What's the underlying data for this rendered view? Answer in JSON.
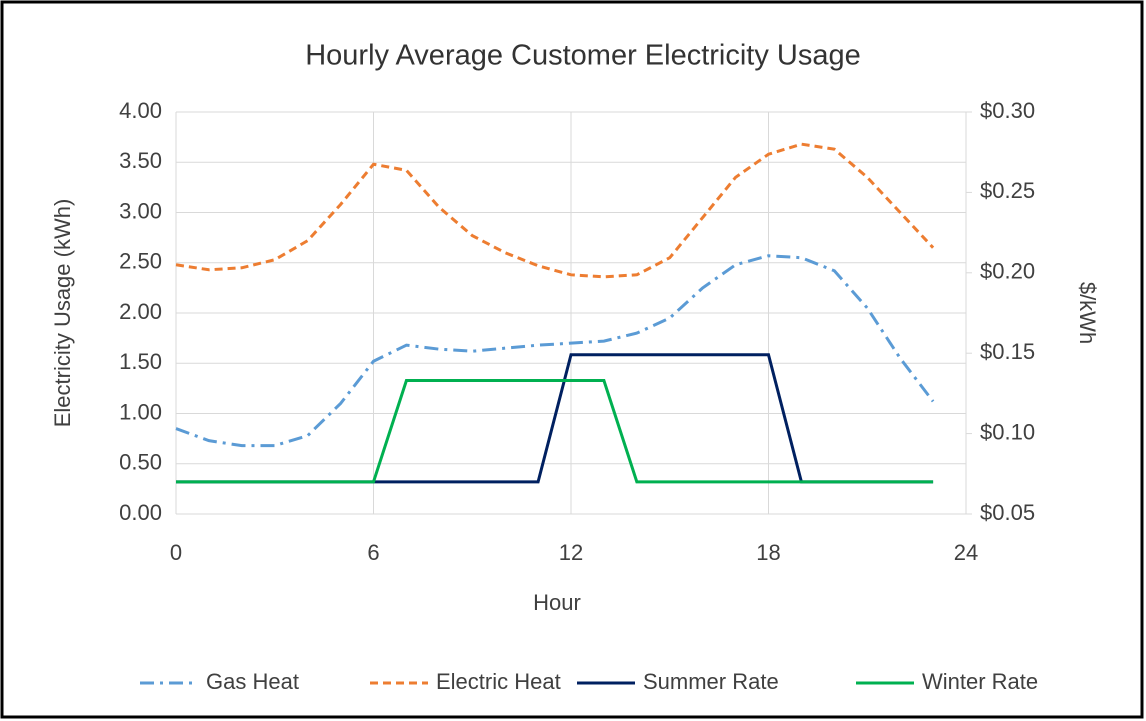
{
  "chart_data": {
    "type": "line",
    "title": "Hourly Average Customer Electricity Usage",
    "x_label": "Hour",
    "y_label": "Electricity Usage (kWh)",
    "y2_label": "$/kWh",
    "x": [
      0,
      1,
      2,
      3,
      4,
      5,
      6,
      7,
      8,
      9,
      10,
      11,
      12,
      13,
      14,
      15,
      16,
      17,
      18,
      19,
      20,
      21,
      22,
      23
    ],
    "series": [
      {
        "name": "Gas Heat",
        "color": "#5b9bd5",
        "dash": "dashdot",
        "values": [
          0.85,
          0.73,
          0.68,
          0.68,
          0.78,
          1.1,
          1.52,
          1.68,
          1.64,
          1.62,
          1.65,
          1.68,
          1.7,
          1.72,
          1.8,
          1.95,
          2.25,
          2.48,
          2.57,
          2.55,
          2.42,
          2.05,
          1.55,
          1.12
        ]
      },
      {
        "name": "Electric Heat",
        "color": "#ed7d31",
        "dash": "dashed",
        "values": [
          2.48,
          2.43,
          2.45,
          2.53,
          2.72,
          3.08,
          3.48,
          3.42,
          3.05,
          2.77,
          2.6,
          2.47,
          2.38,
          2.36,
          2.38,
          2.55,
          2.95,
          3.35,
          3.58,
          3.68,
          3.63,
          3.35,
          3.0,
          2.65
        ]
      },
      {
        "name": "Summer Rate",
        "color": "#002060",
        "dash": "solid",
        "axis": "y2",
        "values": [
          0.07,
          0.07,
          0.07,
          0.07,
          0.07,
          0.07,
          0.07,
          0.07,
          0.07,
          0.07,
          0.07,
          0.07,
          0.149,
          0.149,
          0.149,
          0.149,
          0.149,
          0.149,
          0.149,
          0.07,
          0.07,
          0.07,
          0.07,
          0.07
        ]
      },
      {
        "name": "Winter Rate",
        "color": "#00b050",
        "dash": "solid",
        "axis": "y2",
        "values": [
          0.07,
          0.07,
          0.07,
          0.07,
          0.07,
          0.07,
          0.07,
          0.133,
          0.133,
          0.133,
          0.133,
          0.133,
          0.133,
          0.133,
          0.07,
          0.07,
          0.07,
          0.07,
          0.07,
          0.07,
          0.07,
          0.07,
          0.07,
          0.07
        ]
      }
    ],
    "xlim": [
      0,
      24
    ],
    "xticks": [
      0,
      6,
      12,
      18,
      24
    ],
    "ylim": [
      0,
      4
    ],
    "yticks": [
      {
        "value": 0,
        "label": "0.00"
      },
      {
        "value": 0.5,
        "label": "0.50"
      },
      {
        "value": 1,
        "label": "1.00"
      },
      {
        "value": 1.5,
        "label": "1.50"
      },
      {
        "value": 2,
        "label": "2.00"
      },
      {
        "value": 2.5,
        "label": "2.50"
      },
      {
        "value": 3,
        "label": "3.00"
      },
      {
        "value": 3.5,
        "label": "3.50"
      },
      {
        "value": 4,
        "label": "4.00"
      }
    ],
    "y2lim": [
      0.05,
      0.3
    ],
    "y2ticks": [
      {
        "value": 0.05,
        "label": "$0.05"
      },
      {
        "value": 0.1,
        "label": "$0.10"
      },
      {
        "value": 0.15,
        "label": "$0.15"
      },
      {
        "value": 0.2,
        "label": "$0.20"
      },
      {
        "value": 0.25,
        "label": "$0.25"
      },
      {
        "value": 0.3,
        "label": "$0.30"
      }
    ],
    "grid": true,
    "legend": "bottom"
  }
}
